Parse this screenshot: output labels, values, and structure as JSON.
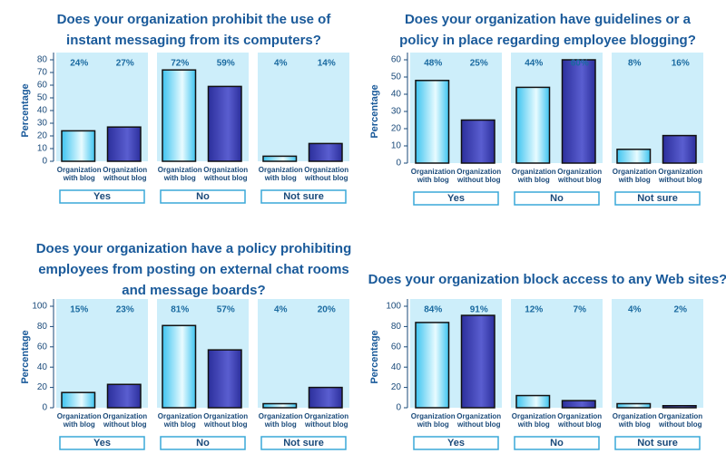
{
  "chart_data": [
    {
      "type": "bar",
      "title": [
        "Does your organization prohibit the use of",
        "instant messaging from its computers?"
      ],
      "y_label": "Percentage",
      "categories": [
        "Yes",
        "No",
        "Not sure"
      ],
      "series": [
        {
          "name": "Organization with blog",
          "color": "#3ec4f0",
          "values": [
            24,
            72,
            4
          ],
          "value_labels": [
            "24%",
            "72%",
            "4%"
          ]
        },
        {
          "name": "Organization without blog",
          "color": "#2c2f9c",
          "values": [
            27,
            59,
            14
          ],
          "value_labels": [
            "27%",
            "59%",
            "14%"
          ]
        }
      ],
      "ylim": [
        0,
        80
      ],
      "yticks": [
        0,
        10,
        20,
        30,
        40,
        50,
        60,
        70,
        80
      ]
    },
    {
      "type": "bar",
      "title": [
        "Does your organization have guidelines or a",
        "policy in place regarding employee blogging?"
      ],
      "y_label": "Percentage",
      "categories": [
        "Yes",
        "No",
        "Not sure"
      ],
      "series": [
        {
          "name": "Organization with blog",
          "color": "#3ec4f0",
          "values": [
            48,
            44,
            8
          ],
          "value_labels": [
            "48%",
            "44%",
            "8%"
          ]
        },
        {
          "name": "Organization without blog",
          "color": "#2c2f9c",
          "values": [
            25,
            60,
            16
          ],
          "value_labels": [
            "25%",
            "60%",
            "16%"
          ]
        }
      ],
      "ylim": [
        0,
        60
      ],
      "yticks": [
        0,
        10,
        20,
        30,
        40,
        50,
        60
      ]
    },
    {
      "type": "bar",
      "title": [
        "Does your organization have a policy prohibiting",
        "employees from posting on external chat rooms",
        "and message boards?"
      ],
      "y_label": "Percentage",
      "categories": [
        "Yes",
        "No",
        "Not sure"
      ],
      "series": [
        {
          "name": "Organization with blog",
          "color": "#3ec4f0",
          "values": [
            15,
            81,
            4
          ],
          "value_labels": [
            "15%",
            "81%",
            "4%"
          ]
        },
        {
          "name": "Organization without blog",
          "color": "#2c2f9c",
          "values": [
            23,
            57,
            20
          ],
          "value_labels": [
            "23%",
            "57%",
            "20%"
          ]
        }
      ],
      "ylim": [
        0,
        100
      ],
      "yticks": [
        0,
        20,
        40,
        60,
        80,
        100
      ]
    },
    {
      "type": "bar",
      "title": [
        "Does your organization block access to any Web sites?"
      ],
      "y_label": "Percentage",
      "categories": [
        "Yes",
        "No",
        "Not sure"
      ],
      "series": [
        {
          "name": "Organization with blog",
          "color": "#3ec4f0",
          "values": [
            84,
            12,
            4
          ],
          "value_labels": [
            "84%",
            "12%",
            "4%"
          ]
        },
        {
          "name": "Organization without blog",
          "color": "#2c2f9c",
          "values": [
            91,
            7,
            2
          ],
          "value_labels": [
            "91%",
            "7%",
            "2%"
          ]
        }
      ],
      "ylim": [
        0,
        100
      ],
      "yticks": [
        0,
        20,
        40,
        60,
        80,
        100
      ]
    }
  ]
}
